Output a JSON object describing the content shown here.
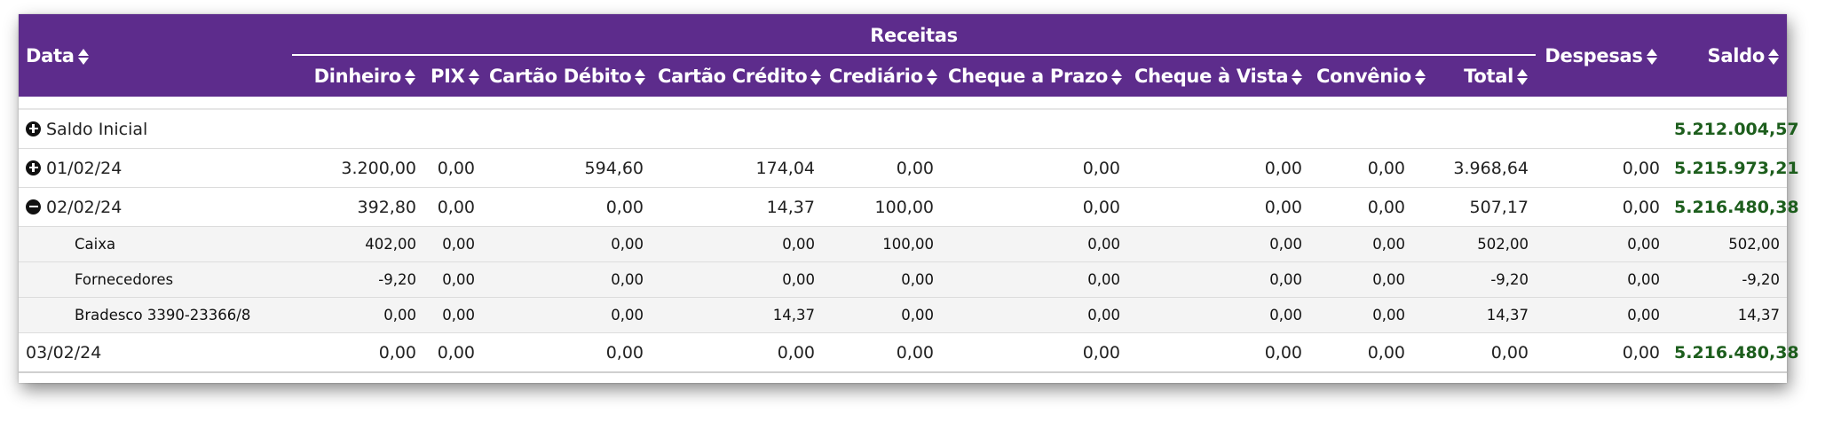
{
  "header": {
    "date": "Data",
    "receitas": "Receitas",
    "dinheiro": "Dinheiro",
    "pix": "PIX",
    "cartao_debito": "Cartão Débito",
    "cartao_credito": "Cartão Crédito",
    "crediario": "Crediário",
    "cheque_prazo": "Cheque a Prazo",
    "cheque_vista": "Cheque à Vista",
    "convenio": "Convênio",
    "total": "Total",
    "despesas": "Despesas",
    "saldo": "Saldo"
  },
  "saldo_inicial": {
    "label": "Saldo Inicial",
    "saldo": "5.212.004,57",
    "icon": "plus-circle-icon"
  },
  "rows": [
    {
      "date": "01/02/24",
      "icon": "plus-circle-icon",
      "values": [
        "3.200,00",
        "0,00",
        "594,60",
        "174,04",
        "0,00",
        "0,00",
        "0,00",
        "0,00",
        "3.968,64",
        "0,00"
      ],
      "saldo": "5.215.973,21"
    },
    {
      "date": "02/02/24",
      "icon": "minus-circle-icon",
      "values": [
        "392,80",
        "0,00",
        "0,00",
        "14,37",
        "100,00",
        "0,00",
        "0,00",
        "0,00",
        "507,17",
        "0,00"
      ],
      "saldo": "5.216.480,38"
    }
  ],
  "subrows": [
    {
      "label": "Caixa",
      "values": [
        "402,00",
        "0,00",
        "0,00",
        "0,00",
        "100,00",
        "0,00",
        "0,00",
        "0,00",
        "502,00",
        "0,00"
      ],
      "saldo": "502,00"
    },
    {
      "label": "Fornecedores",
      "values": [
        "-9,20",
        "0,00",
        "0,00",
        "0,00",
        "0,00",
        "0,00",
        "0,00",
        "0,00",
        "-9,20",
        "0,00"
      ],
      "saldo": "-9,20"
    },
    {
      "label": "Bradesco 3390-23366/8",
      "values": [
        "0,00",
        "0,00",
        "0,00",
        "14,37",
        "0,00",
        "0,00",
        "0,00",
        "0,00",
        "14,37",
        "0,00"
      ],
      "saldo": "14,37"
    }
  ],
  "last_row": {
    "date": "03/02/24",
    "values": [
      "0,00",
      "0,00",
      "0,00",
      "0,00",
      "0,00",
      "0,00",
      "0,00",
      "0,00",
      "0,00",
      "0,00"
    ],
    "saldo": "5.216.480,38"
  },
  "colors": {
    "header_bg": "#5d2c8c",
    "saldo_green": "#1d5e1d",
    "subrow_bg": "#f4f4f4"
  }
}
